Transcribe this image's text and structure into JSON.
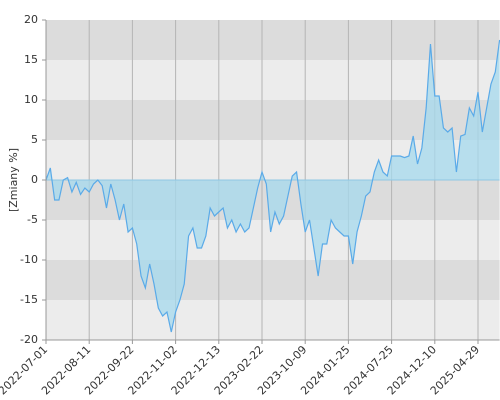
{
  "chart_data": {
    "type": "area-line",
    "y_label": "[Zmiany %]",
    "categories": [
      "2022-07-01",
      null,
      null,
      null,
      null,
      null,
      null,
      null,
      null,
      null,
      "2022-08-11",
      null,
      null,
      null,
      null,
      null,
      null,
      null,
      null,
      null,
      "2022-09-22",
      null,
      null,
      null,
      null,
      null,
      null,
      null,
      null,
      null,
      "2022-11-02",
      null,
      null,
      null,
      null,
      null,
      null,
      null,
      null,
      null,
      "2022-12-13",
      null,
      null,
      null,
      null,
      null,
      null,
      null,
      null,
      null,
      "2023-02-22",
      null,
      null,
      null,
      null,
      null,
      null,
      null,
      null,
      null,
      "2023-10-09",
      null,
      null,
      null,
      null,
      null,
      null,
      null,
      null,
      null,
      "2024-01-25",
      null,
      null,
      null,
      null,
      null,
      null,
      null,
      null,
      null,
      "2024-07-25",
      null,
      null,
      null,
      null,
      null,
      null,
      null,
      null,
      null,
      "2024-12-10",
      null,
      null,
      null,
      null,
      null,
      null,
      null,
      null,
      null,
      "2025-04-29",
      null,
      null,
      null,
      null,
      null
    ],
    "values": [
      0,
      1.5,
      -2.5,
      -2.5,
      0,
      0.3,
      -1.5,
      -0.3,
      -1.8,
      -1,
      -1.5,
      -0.5,
      0,
      -0.7,
      -3.5,
      -0.5,
      -2.5,
      -5,
      -3,
      -6.5,
      -6,
      -8,
      -12,
      -13.5,
      -10.5,
      -13,
      -16,
      -17,
      -16.5,
      -19,
      -16.5,
      -15,
      -13,
      -7,
      -6,
      -8.5,
      -8.5,
      -7,
      -3.5,
      -4.5,
      -4,
      -3.5,
      -6,
      -5,
      -6.5,
      -5.5,
      -6.5,
      -6,
      -3.5,
      -1,
      1,
      -0.5,
      -6.5,
      -4,
      -5.5,
      -4.5,
      -2,
      0.5,
      1,
      -3,
      -6.5,
      -5,
      -8.5,
      -12,
      -8,
      -8,
      -5,
      -6,
      -6.5,
      -7,
      -7,
      -10.5,
      -6.5,
      -4.5,
      -2,
      -1.5,
      1,
      2.5,
      1,
      0.5,
      3,
      3,
      3,
      2.8,
      3,
      5.5,
      2,
      4,
      9,
      17,
      10.5,
      10.5,
      6.5,
      6,
      6.5,
      1,
      5.5,
      5.7,
      9,
      8,
      11,
      6,
      9,
      12,
      13.5,
      17.5
    ],
    "color": "#5aaae8",
    "fill_color": "#a6d9ee",
    "ylim": [
      -20,
      20
    ],
    "yticks": [
      -20,
      -15,
      -10,
      -5,
      0,
      5,
      10,
      15,
      20
    ],
    "grid": true
  }
}
